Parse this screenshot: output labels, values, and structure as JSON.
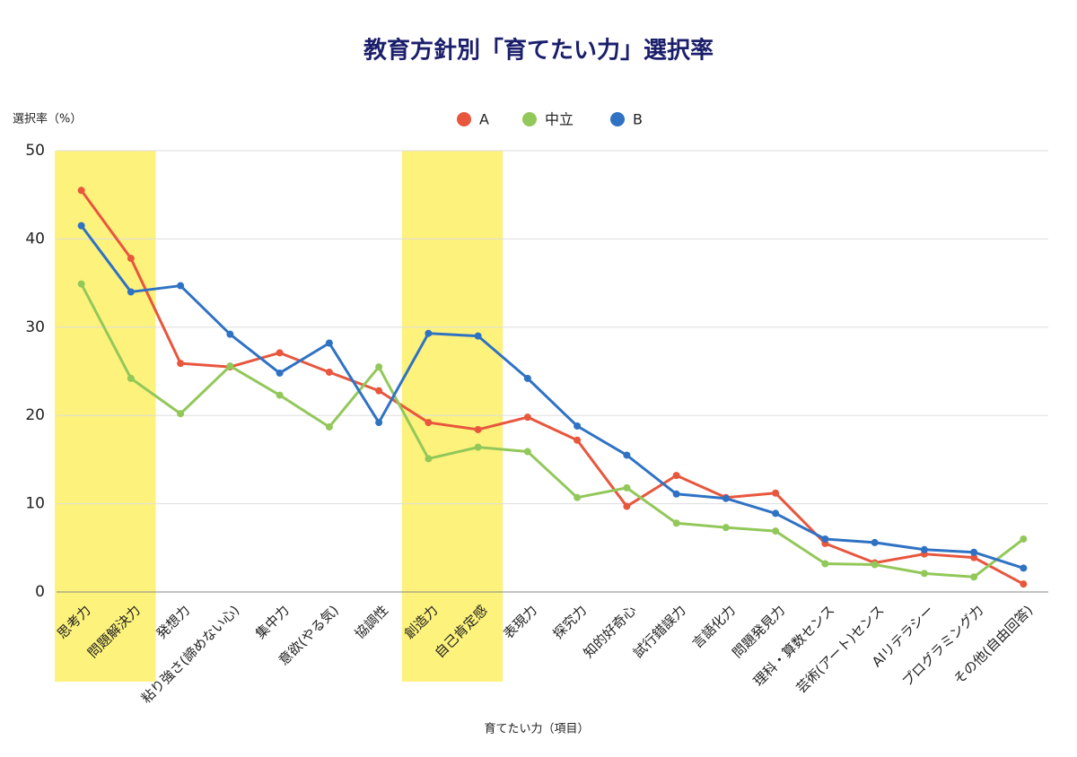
{
  "chart_data": {
    "type": "line",
    "title": "教育方針別「育てたい力」選択率",
    "y_label": "選択率（%）",
    "x_label": "育てたい力（項目）",
    "categories": [
      "思考力",
      "問題解決力",
      "発想力",
      "粘り強さ(諦めない心)",
      "集中力",
      "意欲(やる気)",
      "協調性",
      "創造力",
      "自己肯定感",
      "表現力",
      "探究力",
      "知的好奇心",
      "試行錯誤力",
      "言語化力",
      "問題発見力",
      "理科・算数センス",
      "芸術(アート)センス",
      "AIリテラシー",
      "プログラミング力",
      "その他(自由回答)"
    ],
    "series": [
      {
        "name": "A",
        "color": "#e8563d",
        "values": [
          45.5,
          37.8,
          25.9,
          25.5,
          27.1,
          24.9,
          22.8,
          19.2,
          18.4,
          19.8,
          17.2,
          9.7,
          13.2,
          10.7,
          11.2,
          5.5,
          3.3,
          4.3,
          3.9,
          0.9
        ]
      },
      {
        "name": "中立",
        "color": "#92c85a",
        "values": [
          34.9,
          24.2,
          20.2,
          25.6,
          22.3,
          18.7,
          25.5,
          15.1,
          16.4,
          15.9,
          10.7,
          11.8,
          7.8,
          7.3,
          6.9,
          3.2,
          3.1,
          2.1,
          1.7,
          6.0
        ]
      },
      {
        "name": "B",
        "color": "#2f72c4",
        "values": [
          41.5,
          34.0,
          34.7,
          29.2,
          24.8,
          28.2,
          19.2,
          29.3,
          29.0,
          24.2,
          18.8,
          15.5,
          11.1,
          10.6,
          8.9,
          6.0,
          5.6,
          4.8,
          4.5,
          2.7
        ]
      }
    ],
    "ylim": [
      0,
      50
    ],
    "yticks": [
      0,
      10,
      20,
      30,
      40,
      50
    ],
    "grid": true,
    "legend": "top",
    "highlight": [
      0,
      1,
      7,
      8
    ],
    "highlight_color": "#fdf27c"
  }
}
